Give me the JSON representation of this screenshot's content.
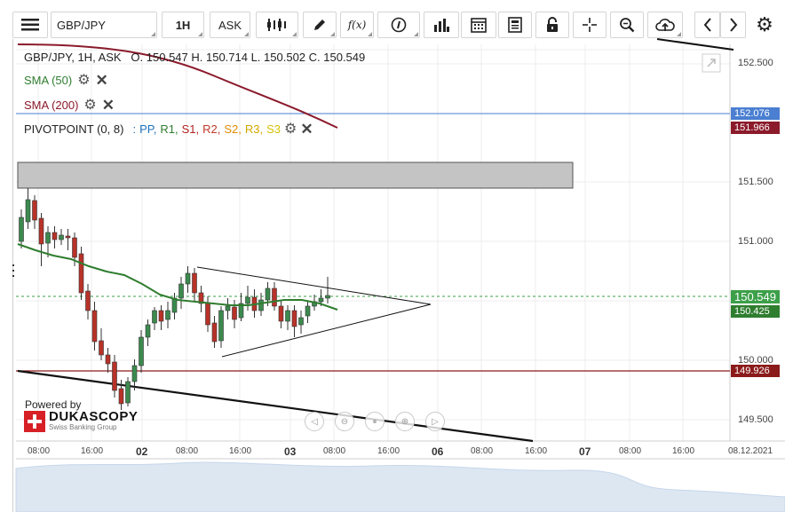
{
  "toolbar": {
    "instrument": "GBP/JPY",
    "timeframe": "1H",
    "side": "ASK",
    "function_label": "f(x)"
  },
  "legend": {
    "ohlc": "GBP/JPY, 1H, ASK   O. 150.547 H. 150.714 L. 150.502 C. 150.549",
    "sma50": "SMA (50)",
    "sma200": "SMA (200)",
    "pivot_label": "PIVOTPOINT (0, 8)",
    "pivot_sep": ":",
    "pivot_items": [
      {
        "name": "PP,",
        "color": "#1e73be"
      },
      {
        "name": "R1,",
        "color": "#2f7d2f"
      },
      {
        "name": "S1,",
        "color": "#b22222"
      },
      {
        "name": "R2,",
        "color": "#c0392b"
      },
      {
        "name": "S2,",
        "color": "#e08a00"
      },
      {
        "name": "R3,",
        "color": "#d4a800"
      },
      {
        "name": "S3",
        "color": "#d4c200"
      }
    ]
  },
  "y_axis": [
    "152.500",
    "151.500",
    "151.000",
    "150.000",
    "149.500"
  ],
  "price_tags": {
    "blue_line": "152.076",
    "sma200": "151.966",
    "current": "150.549",
    "sma50": "150.425",
    "support": "149.926"
  },
  "x_axis": [
    "08:00",
    "16:00",
    "02",
    "08:00",
    "16:00",
    "03",
    "08:00",
    "16:00",
    "06",
    "08:00",
    "16:00",
    "07",
    "08:00",
    "16:00",
    "08.12.2021"
  ],
  "branding": {
    "powered_by": "Powered by",
    "name": "DUKASCOPY",
    "tagline": "Swiss Banking Group"
  },
  "colors": {
    "sma50": "#2f7d2f",
    "sma200": "#8b1a2b",
    "blue_line": "#4a7fd1",
    "bull": "#3c8a4e",
    "bear": "#b83228",
    "current_tag": "#3c9f49",
    "sma50_tag": "#2f7d2f",
    "support_tag": "#8b1a1a",
    "sma200_tag": "#8b1a2b",
    "blue_tag": "#4a7fd1"
  }
}
